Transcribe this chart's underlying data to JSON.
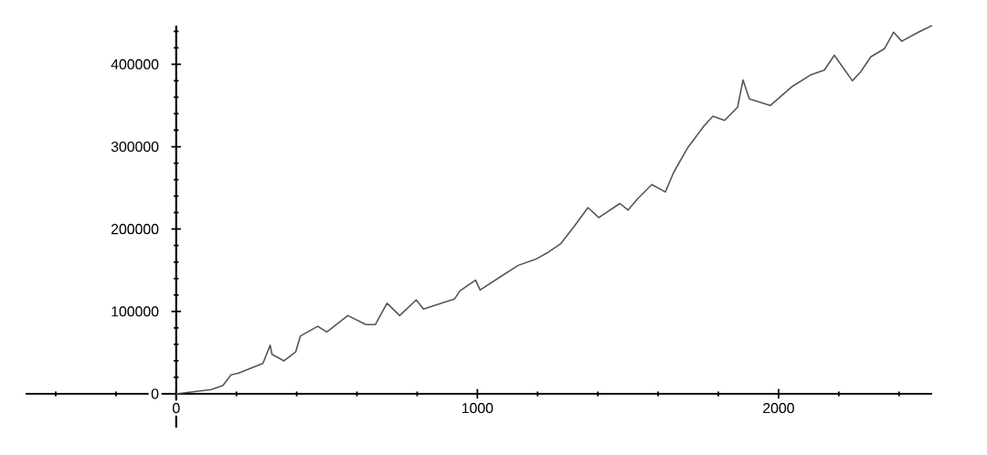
{
  "chart_data": {
    "type": "line",
    "color": "#555555",
    "marker": "none",
    "line_style": "solid",
    "grid": false,
    "x": [
      0,
      115,
      155,
      182,
      206,
      288,
      312,
      318,
      358,
      397,
      412,
      470,
      500,
      570,
      630,
      661,
      700,
      742,
      797,
      821,
      924,
      942,
      994,
      1009,
      1076,
      1136,
      1197,
      1236,
      1276,
      1321,
      1367,
      1403,
      1473,
      1500,
      1530,
      1579,
      1624,
      1652,
      1697,
      1752,
      1782,
      1821,
      1864,
      1882,
      1903,
      1973,
      2045,
      2106,
      2152,
      2185,
      2212,
      2245,
      2273,
      2306,
      2352,
      2382,
      2409,
      2464,
      2509
    ],
    "values": [
      0,
      5000,
      10000,
      23000,
      25000,
      37000,
      59000,
      48000,
      40000,
      51000,
      70000,
      82000,
      75000,
      95000,
      84000,
      84000,
      110000,
      95000,
      114000,
      103000,
      115000,
      125000,
      138000,
      126000,
      142000,
      156000,
      164000,
      172000,
      182000,
      203000,
      226000,
      214000,
      231000,
      223000,
      236000,
      254000,
      245000,
      269000,
      298000,
      325000,
      337000,
      332000,
      348000,
      381000,
      358000,
      350000,
      373000,
      387000,
      393000,
      411000,
      397000,
      380000,
      391000,
      409000,
      419000,
      439000,
      428000,
      439000,
      447000
    ],
    "xlim": [
      -500,
      2510
    ],
    "ylim": [
      -41000,
      447000
    ],
    "xticks": [
      {
        "value": -400,
        "label": null
      },
      {
        "value": -200,
        "label": null
      },
      0,
      {
        "value": 200,
        "label": null
      },
      {
        "value": 400,
        "label": null
      },
      {
        "value": 600,
        "label": null
      },
      {
        "value": 800,
        "label": null
      },
      1000,
      {
        "value": 1200,
        "label": null
      },
      {
        "value": 1400,
        "label": null
      },
      {
        "value": 1600,
        "label": null
      },
      {
        "value": 1800,
        "label": null
      },
      2000,
      {
        "value": 2200,
        "label": null
      },
      {
        "value": 2400,
        "label": null
      }
    ],
    "yticks": [
      {
        "value": -20000,
        "label": null
      },
      0,
      {
        "value": 20000,
        "label": null
      },
      {
        "value": 40000,
        "label": null
      },
      {
        "value": 60000,
        "label": null
      },
      {
        "value": 80000,
        "label": null
      },
      100000,
      {
        "value": 120000,
        "label": null
      },
      {
        "value": 140000,
        "label": null
      },
      {
        "value": 160000,
        "label": null
      },
      {
        "value": 180000,
        "label": null
      },
      200000,
      {
        "value": 220000,
        "label": null
      },
      {
        "value": 240000,
        "label": null
      },
      {
        "value": 260000,
        "label": null
      },
      {
        "value": 280000,
        "label": null
      },
      300000,
      {
        "value": 320000,
        "label": null
      },
      {
        "value": 340000,
        "label": null
      },
      {
        "value": 360000,
        "label": null
      },
      {
        "value": 380000,
        "label": null
      },
      400000,
      {
        "value": 420000,
        "label": null
      },
      {
        "value": 440000,
        "label": null
      }
    ]
  }
}
